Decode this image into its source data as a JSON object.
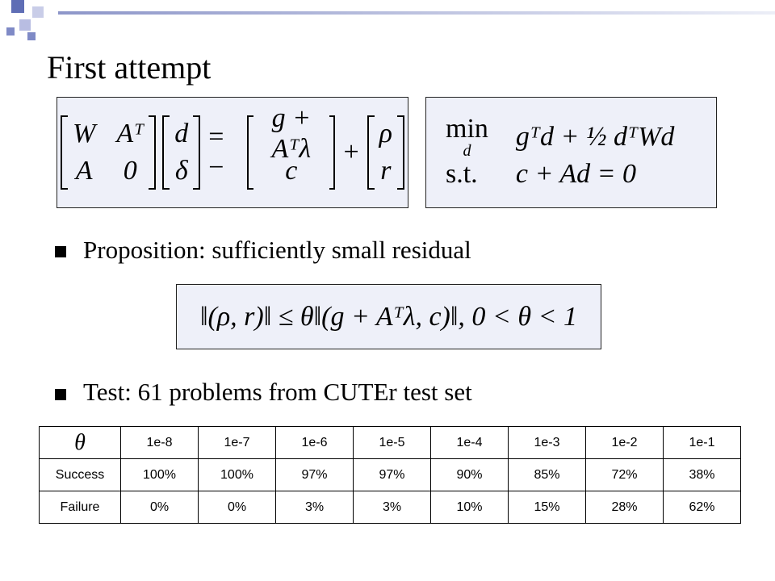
{
  "title": "First attempt",
  "kkt_system": {
    "matrix": [
      [
        "W",
        "Aᵀ"
      ],
      [
        "A",
        "0"
      ]
    ],
    "unknowns": [
      "d",
      "δ"
    ],
    "equals": "= −",
    "rhs": [
      "g + Aᵀλ",
      "c"
    ],
    "plus": "+",
    "residual": [
      "ρ",
      "r"
    ]
  },
  "qp": {
    "min": "min",
    "min_sub": "d",
    "objective": "gᵀd + ½ dᵀWd",
    "st": "s.t.",
    "constraint": "c + Ad = 0"
  },
  "bullets": [
    "Proposition: sufficiently small residual",
    "Test: 61 problems from CUTEr test set"
  ],
  "condition": "‖(ρ, r)‖ ≤ θ‖(g + Aᵀλ, c)‖, 0 < θ < 1",
  "table": {
    "header": [
      "θ",
      "1e-8",
      "1e-7",
      "1e-6",
      "1e-5",
      "1e-4",
      "1e-3",
      "1e-2",
      "1e-1"
    ],
    "rows": [
      [
        "Success",
        "100%",
        "100%",
        "97%",
        "97%",
        "90%",
        "85%",
        "72%",
        "38%"
      ],
      [
        "Failure",
        "0%",
        "0%",
        "3%",
        "3%",
        "10%",
        "15%",
        "28%",
        "62%"
      ]
    ]
  }
}
